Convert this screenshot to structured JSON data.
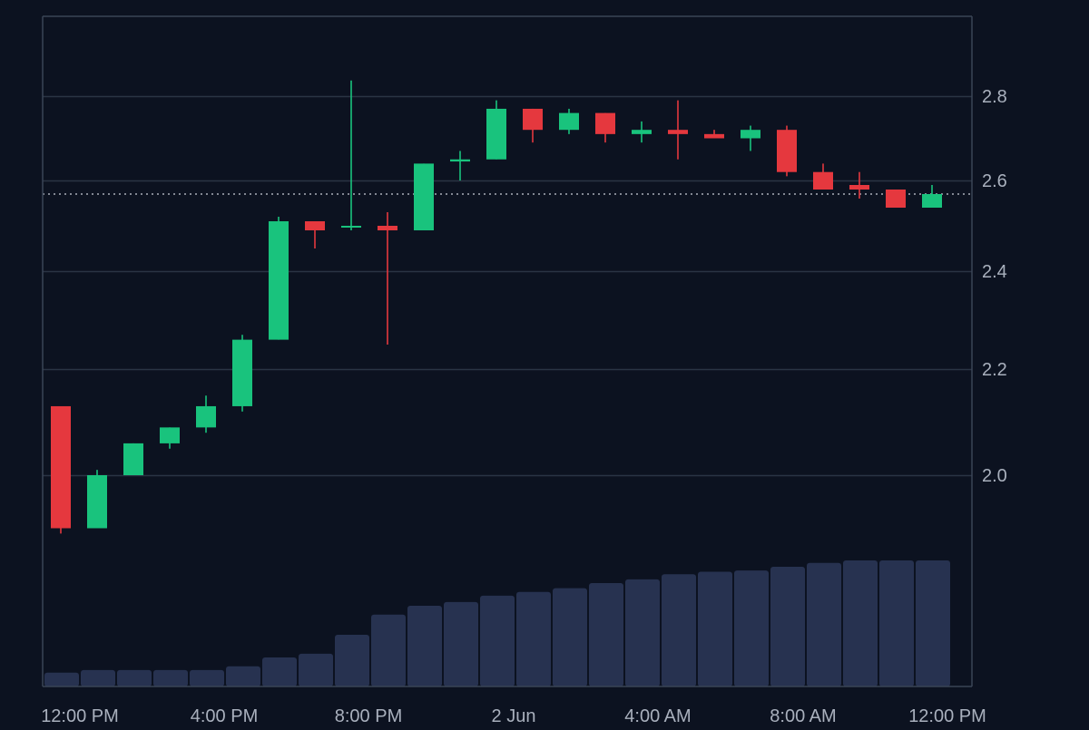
{
  "colors": {
    "background": "#0c1220",
    "grid": "#2a3444",
    "frame": "#3a4556",
    "up": "#19c37d",
    "down": "#e5383e",
    "volume": "#273250",
    "tick_text": "#a9b0bd",
    "last_price_line": "#c8cdd6"
  },
  "chart_data": {
    "type": "candlestick",
    "grid": true,
    "y_ticks": [
      "2.0",
      "2.2",
      "2.4",
      "2.6",
      "2.8"
    ],
    "x_ticks": [
      "12:00 PM",
      "4:00 PM",
      "8:00 PM",
      "2 Jun",
      "4:00 AM",
      "8:00 AM",
      "12:00 PM"
    ],
    "last_price": 2.57,
    "candles": [
      {
        "open": 2.13,
        "high": 2.13,
        "low": 1.89,
        "close": 1.9
      },
      {
        "open": 1.9,
        "high": 2.01,
        "low": 1.9,
        "close": 2.0
      },
      {
        "open": 2.0,
        "high": 2.06,
        "low": 2.0,
        "close": 2.06
      },
      {
        "open": 2.06,
        "high": 2.09,
        "low": 2.05,
        "close": 2.09
      },
      {
        "open": 2.09,
        "high": 2.15,
        "low": 2.08,
        "close": 2.13
      },
      {
        "open": 2.13,
        "high": 2.27,
        "low": 2.12,
        "close": 2.26
      },
      {
        "open": 2.26,
        "high": 2.52,
        "low": 2.26,
        "close": 2.51
      },
      {
        "open": 2.51,
        "high": 2.51,
        "low": 2.45,
        "close": 2.49
      },
      {
        "open": 2.5,
        "high": 2.84,
        "low": 2.49,
        "close": 2.5
      },
      {
        "open": 2.5,
        "high": 2.53,
        "low": 2.25,
        "close": 2.49
      },
      {
        "open": 2.49,
        "high": 2.64,
        "low": 2.49,
        "close": 2.64
      },
      {
        "open": 2.645,
        "high": 2.67,
        "low": 2.6,
        "close": 2.65
      },
      {
        "open": 2.65,
        "high": 2.79,
        "low": 2.65,
        "close": 2.77
      },
      {
        "open": 2.77,
        "high": 2.77,
        "low": 2.69,
        "close": 2.72
      },
      {
        "open": 2.72,
        "high": 2.77,
        "low": 2.71,
        "close": 2.76
      },
      {
        "open": 2.76,
        "high": 2.76,
        "low": 2.69,
        "close": 2.71
      },
      {
        "open": 2.71,
        "high": 2.74,
        "low": 2.69,
        "close": 2.72
      },
      {
        "open": 2.72,
        "high": 2.79,
        "low": 2.65,
        "close": 2.71
      },
      {
        "open": 2.71,
        "high": 2.72,
        "low": 2.7,
        "close": 2.7
      },
      {
        "open": 2.7,
        "high": 2.73,
        "low": 2.67,
        "close": 2.72
      },
      {
        "open": 2.72,
        "high": 2.73,
        "low": 2.61,
        "close": 2.62
      },
      {
        "open": 2.62,
        "high": 2.64,
        "low": 2.58,
        "close": 2.58
      },
      {
        "open": 2.59,
        "high": 2.62,
        "low": 2.56,
        "close": 2.58
      },
      {
        "open": 2.58,
        "high": 2.58,
        "low": 2.54,
        "close": 2.54
      },
      {
        "open": 2.54,
        "high": 2.59,
        "low": 2.54,
        "close": 2.57
      }
    ],
    "volume": [
      0.11,
      0.13,
      0.13,
      0.13,
      0.13,
      0.16,
      0.23,
      0.26,
      0.41,
      0.57,
      0.64,
      0.67,
      0.72,
      0.75,
      0.78,
      0.82,
      0.85,
      0.89,
      0.91,
      0.92,
      0.95,
      0.98,
      1.0,
      1.0,
      1.0
    ]
  }
}
